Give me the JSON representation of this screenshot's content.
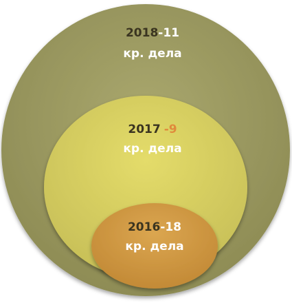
{
  "nodes": [
    {
      "year": "2018",
      "count": "-11",
      "label": "кр. дела"
    },
    {
      "year": "2017",
      "count": "-9",
      "label": "кр. дела"
    },
    {
      "year": "2016",
      "count": "-18",
      "label": "кр. дела"
    }
  ]
}
